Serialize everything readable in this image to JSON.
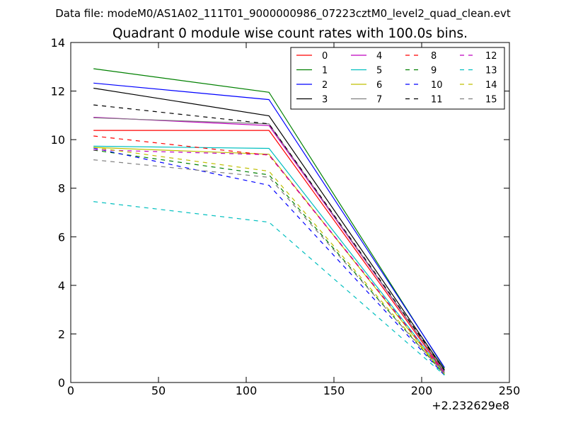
{
  "chart_data": {
    "type": "line",
    "suptitle": "Data file: modeM0/AS1A02_111T01_9000000986_07223cztM0_level2_quad_clean.evt",
    "title": "Quadrant 0 module wise count rates with 100.0s bins.",
    "xlabel": "",
    "ylabel": "",
    "xlim": [
      0,
      250
    ],
    "ylim": [
      0,
      14
    ],
    "xticks": [
      0,
      50,
      100,
      150,
      200,
      250
    ],
    "yticks": [
      0,
      2,
      4,
      6,
      8,
      10,
      12,
      14
    ],
    "x_offset_label": "+2.232629e8",
    "x": [
      13,
      113,
      213
    ],
    "legend_position": "upper right",
    "series": [
      {
        "name": "0",
        "color": "#ff0000",
        "dash": "solid",
        "values": [
          10.38,
          10.38,
          0.4
        ]
      },
      {
        "name": "1",
        "color": "#008000",
        "dash": "solid",
        "values": [
          12.92,
          11.95,
          0.58
        ]
      },
      {
        "name": "2",
        "color": "#0000ff",
        "dash": "solid",
        "values": [
          12.33,
          11.65,
          0.62
        ]
      },
      {
        "name": "3",
        "color": "#000000",
        "dash": "solid",
        "values": [
          12.12,
          10.98,
          0.52
        ]
      },
      {
        "name": "4",
        "color": "#bf00bf",
        "dash": "solid",
        "values": [
          10.92,
          10.58,
          0.45
        ]
      },
      {
        "name": "5",
        "color": "#00bfbf",
        "dash": "solid",
        "values": [
          9.73,
          9.64,
          0.38
        ]
      },
      {
        "name": "6",
        "color": "#bfbf00",
        "dash": "solid",
        "values": [
          9.68,
          9.4,
          0.32
        ]
      },
      {
        "name": "7",
        "color": "#808080",
        "dash": "solid",
        "values": [
          10.9,
          10.65,
          0.45
        ]
      },
      {
        "name": "8",
        "color": "#ff0000",
        "dash": "dashed",
        "values": [
          10.15,
          9.36,
          0.38
        ]
      },
      {
        "name": "9",
        "color": "#008000",
        "dash": "dashed",
        "values": [
          9.57,
          8.55,
          0.32
        ]
      },
      {
        "name": "10",
        "color": "#0000ff",
        "dash": "dashed",
        "values": [
          9.65,
          8.12,
          0.3
        ]
      },
      {
        "name": "11",
        "color": "#000000",
        "dash": "dashed",
        "values": [
          11.43,
          10.65,
          0.5
        ]
      },
      {
        "name": "12",
        "color": "#bf00bf",
        "dash": "dashed",
        "values": [
          9.58,
          9.38,
          0.4
        ]
      },
      {
        "name": "13",
        "color": "#00bfbf",
        "dash": "dashed",
        "values": [
          7.45,
          6.6,
          0.3
        ]
      },
      {
        "name": "14",
        "color": "#bfbf00",
        "dash": "dashed",
        "values": [
          9.68,
          8.7,
          0.35
        ]
      },
      {
        "name": "15",
        "color": "#808080",
        "dash": "dashed",
        "values": [
          9.17,
          8.45,
          0.35
        ]
      }
    ]
  }
}
